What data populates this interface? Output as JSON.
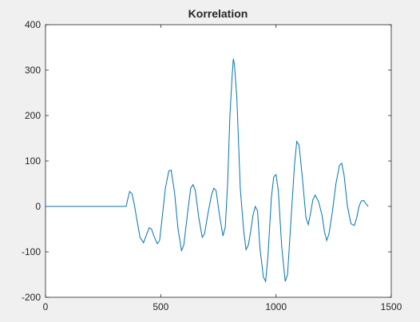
{
  "chart_data": {
    "type": "line",
    "title": "Korrelation",
    "xlabel": "",
    "ylabel": "",
    "xlim": [
      0,
      1500
    ],
    "ylim": [
      -200,
      400
    ],
    "x_ticks": [
      0,
      500,
      1000,
      1500
    ],
    "x_tick_labels": [
      "0",
      "500",
      "1000",
      "1500"
    ],
    "y_ticks": [
      -200,
      -100,
      0,
      100,
      200,
      300,
      400
    ],
    "y_tick_labels": [
      "-200",
      "-100",
      "0",
      "100",
      "200",
      "300",
      "400"
    ],
    "grid": false,
    "colors": {
      "line": "#0072bd",
      "axes_bg": "#ffffff",
      "figure_bg": "#f0f0f0",
      "axis": "#262626"
    },
    "series": [
      {
        "points": [
          [
            0,
            0
          ],
          [
            350,
            0
          ],
          [
            355,
            12
          ],
          [
            365,
            33
          ],
          [
            375,
            28
          ],
          [
            385,
            5
          ],
          [
            395,
            -25
          ],
          [
            410,
            -68
          ],
          [
            425,
            -80
          ],
          [
            440,
            -60
          ],
          [
            450,
            -47
          ],
          [
            460,
            -50
          ],
          [
            470,
            -65
          ],
          [
            485,
            -82
          ],
          [
            495,
            -75
          ],
          [
            505,
            -30
          ],
          [
            520,
            40
          ],
          [
            535,
            78
          ],
          [
            545,
            80
          ],
          [
            560,
            30
          ],
          [
            575,
            -50
          ],
          [
            590,
            -97
          ],
          [
            600,
            -85
          ],
          [
            615,
            -20
          ],
          [
            630,
            40
          ],
          [
            640,
            48
          ],
          [
            650,
            35
          ],
          [
            665,
            -25
          ],
          [
            680,
            -68
          ],
          [
            690,
            -60
          ],
          [
            705,
            -15
          ],
          [
            720,
            25
          ],
          [
            730,
            40
          ],
          [
            740,
            35
          ],
          [
            755,
            -20
          ],
          [
            770,
            -65
          ],
          [
            780,
            -45
          ],
          [
            790,
            50
          ],
          [
            800,
            200
          ],
          [
            810,
            290
          ],
          [
            815,
            325
          ],
          [
            820,
            310
          ],
          [
            830,
            240
          ],
          [
            845,
            40
          ],
          [
            860,
            -55
          ],
          [
            870,
            -95
          ],
          [
            880,
            -85
          ],
          [
            890,
            -55
          ],
          [
            900,
            -20
          ],
          [
            910,
            0
          ],
          [
            920,
            -10
          ],
          [
            930,
            -90
          ],
          [
            945,
            -155
          ],
          [
            955,
            -165
          ],
          [
            965,
            -110
          ],
          [
            980,
            20
          ],
          [
            990,
            65
          ],
          [
            1000,
            70
          ],
          [
            1010,
            35
          ],
          [
            1025,
            -90
          ],
          [
            1040,
            -165
          ],
          [
            1050,
            -150
          ],
          [
            1065,
            -30
          ],
          [
            1080,
            90
          ],
          [
            1090,
            143
          ],
          [
            1100,
            135
          ],
          [
            1115,
            60
          ],
          [
            1130,
            -25
          ],
          [
            1140,
            -40
          ],
          [
            1150,
            -15
          ],
          [
            1160,
            15
          ],
          [
            1170,
            25
          ],
          [
            1185,
            10
          ],
          [
            1200,
            -20
          ],
          [
            1210,
            -55
          ],
          [
            1220,
            -75
          ],
          [
            1230,
            -60
          ],
          [
            1245,
            -10
          ],
          [
            1260,
            50
          ],
          [
            1275,
            90
          ],
          [
            1285,
            95
          ],
          [
            1295,
            70
          ],
          [
            1310,
            0
          ],
          [
            1325,
            -38
          ],
          [
            1340,
            -42
          ],
          [
            1350,
            -25
          ],
          [
            1360,
            0
          ],
          [
            1370,
            12
          ],
          [
            1380,
            13
          ],
          [
            1390,
            6
          ],
          [
            1400,
            0
          ]
        ]
      }
    ]
  }
}
